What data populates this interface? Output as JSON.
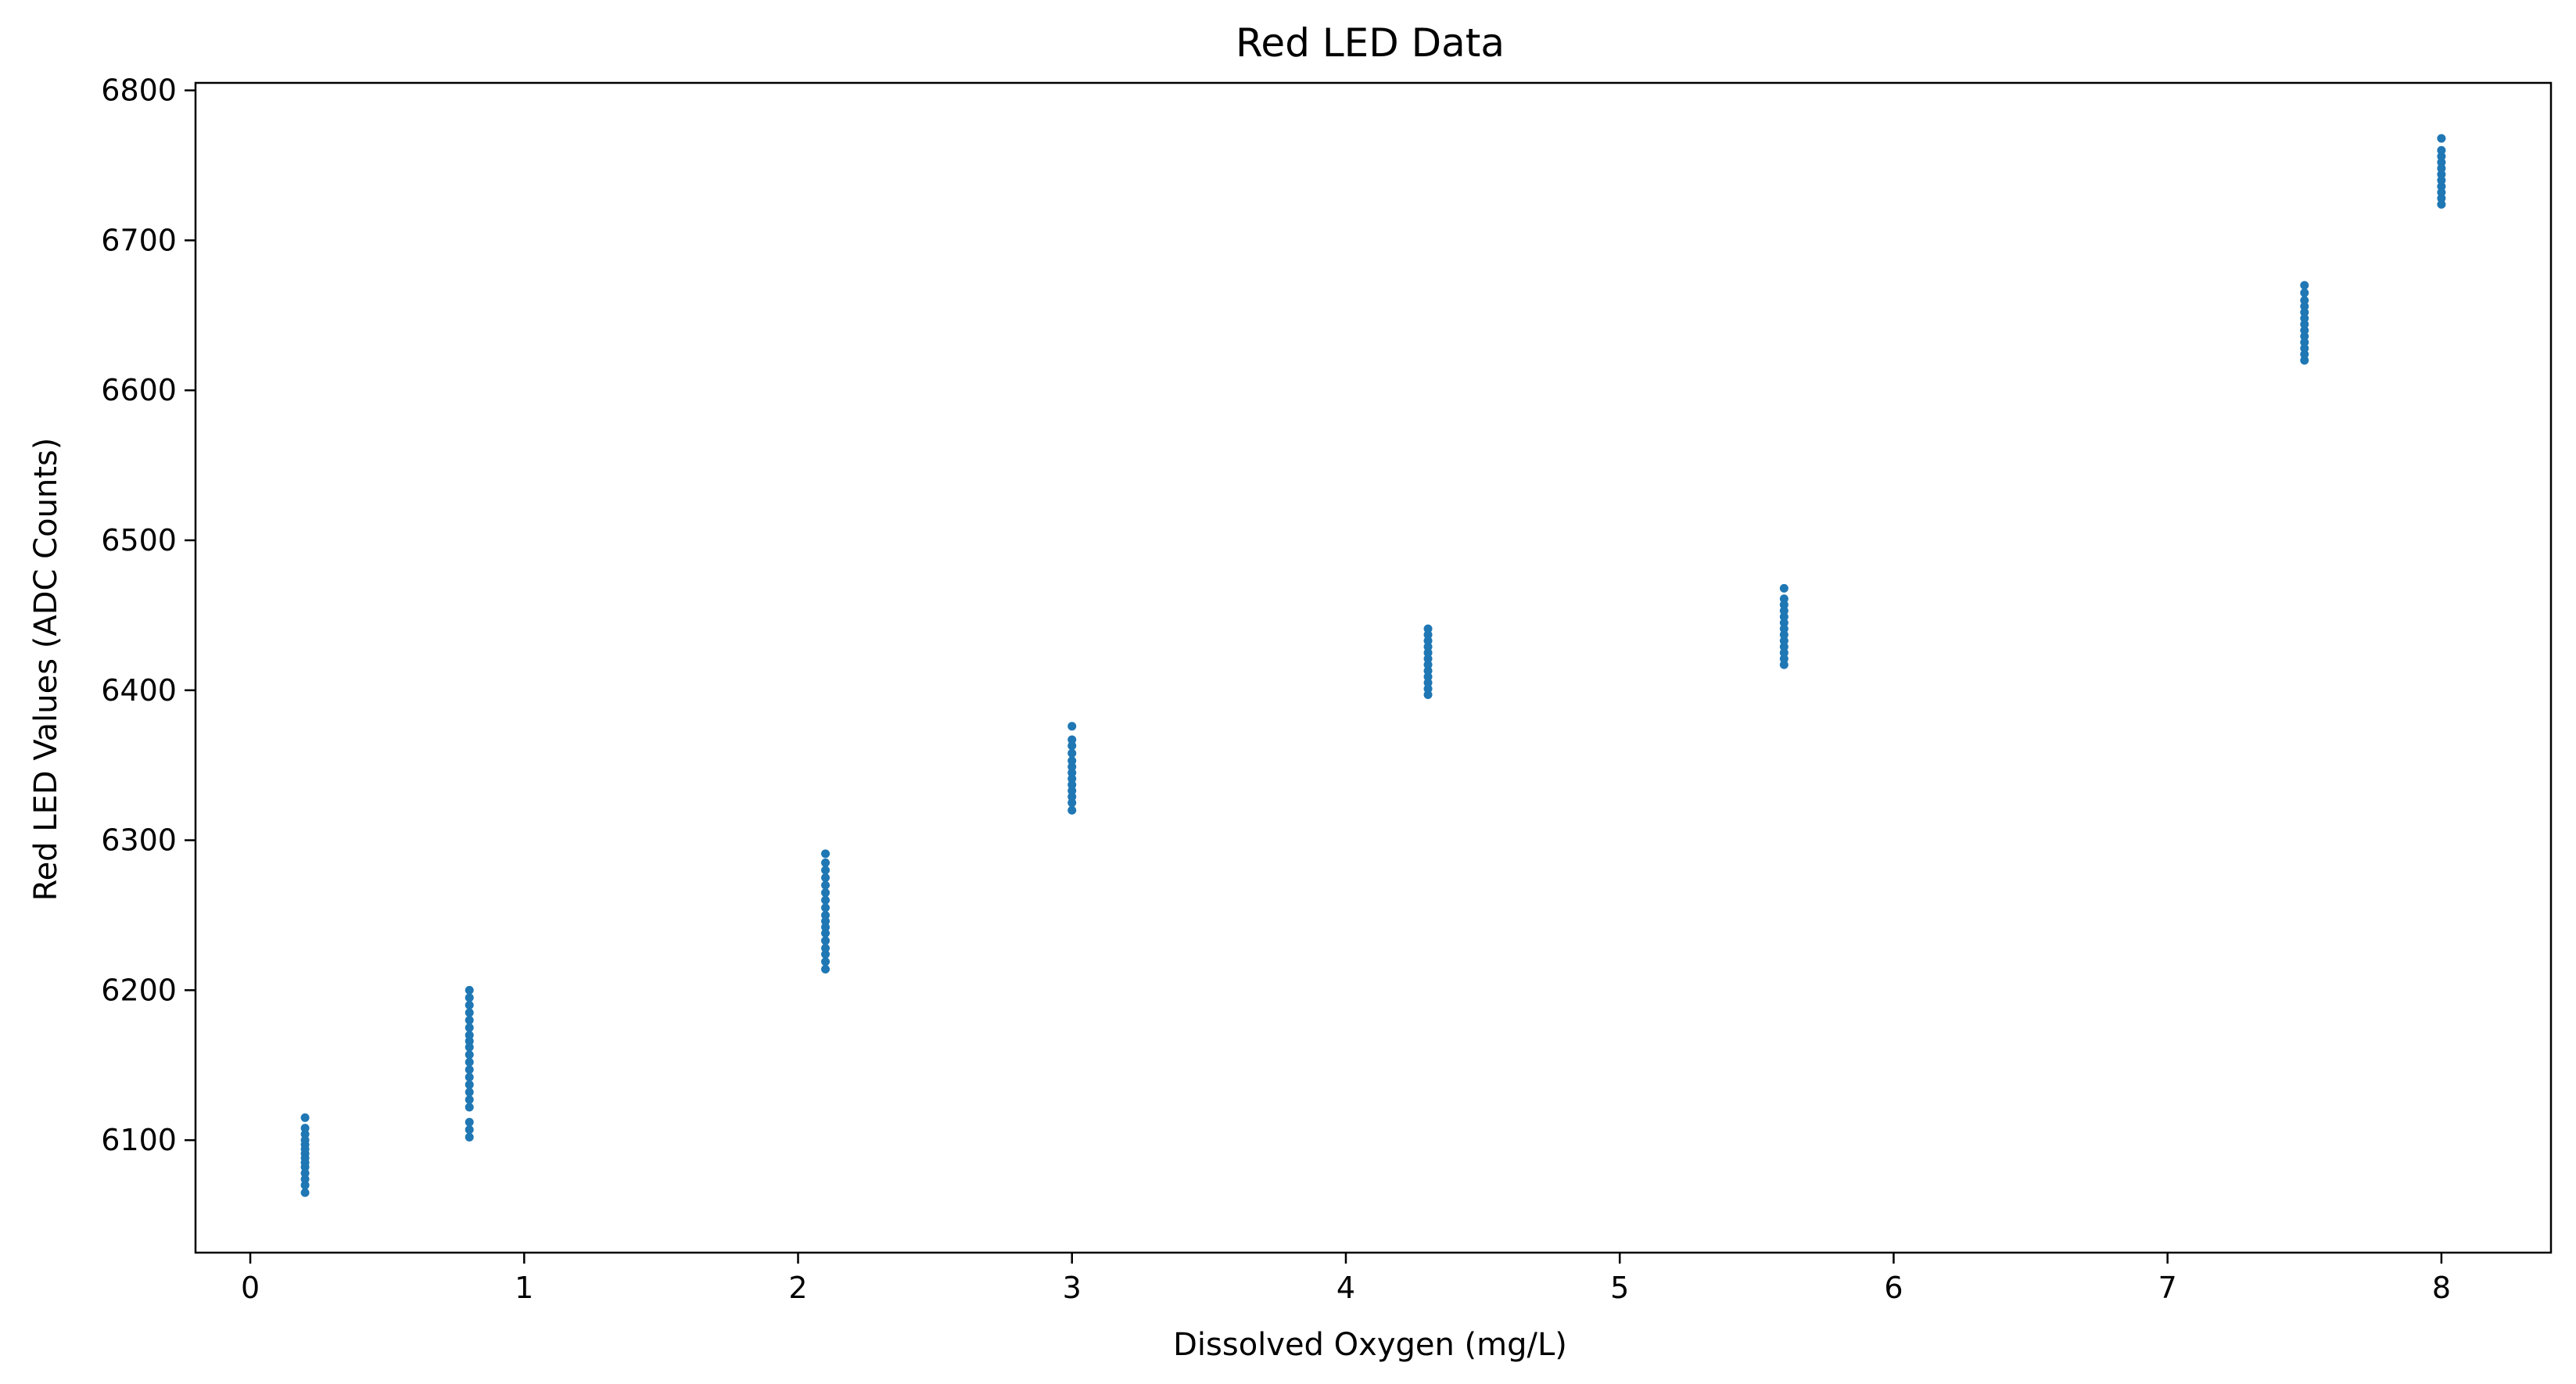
{
  "chart_data": {
    "type": "scatter",
    "title": "Red LED Data",
    "xlabel": "Dissolved Oxygen (mg/L)",
    "ylabel": "Red LED Values (ADC Counts)",
    "xlim": [
      -0.2,
      8.4
    ],
    "ylim": [
      6025,
      6805
    ],
    "xticks": [
      0,
      1,
      2,
      3,
      4,
      5,
      6,
      7,
      8
    ],
    "yticks": [
      6100,
      6200,
      6300,
      6400,
      6500,
      6600,
      6700,
      6800
    ],
    "grid": false,
    "marker_color": "#1f77b4",
    "series": [
      {
        "points": [
          {
            "x": 0.2,
            "y": 6065
          },
          {
            "x": 0.2,
            "y": 6070
          },
          {
            "x": 0.2,
            "y": 6074
          },
          {
            "x": 0.2,
            "y": 6078
          },
          {
            "x": 0.2,
            "y": 6082
          },
          {
            "x": 0.2,
            "y": 6085
          },
          {
            "x": 0.2,
            "y": 6088
          },
          {
            "x": 0.2,
            "y": 6091
          },
          {
            "x": 0.2,
            "y": 6094
          },
          {
            "x": 0.2,
            "y": 6097
          },
          {
            "x": 0.2,
            "y": 6100
          },
          {
            "x": 0.2,
            "y": 6104
          },
          {
            "x": 0.2,
            "y": 6108
          },
          {
            "x": 0.2,
            "y": 6115
          },
          {
            "x": 0.8,
            "y": 6102
          },
          {
            "x": 0.8,
            "y": 6107
          },
          {
            "x": 0.8,
            "y": 6112
          },
          {
            "x": 0.8,
            "y": 6122
          },
          {
            "x": 0.8,
            "y": 6127
          },
          {
            "x": 0.8,
            "y": 6132
          },
          {
            "x": 0.8,
            "y": 6137
          },
          {
            "x": 0.8,
            "y": 6142
          },
          {
            "x": 0.8,
            "y": 6147
          },
          {
            "x": 0.8,
            "y": 6152
          },
          {
            "x": 0.8,
            "y": 6157
          },
          {
            "x": 0.8,
            "y": 6162
          },
          {
            "x": 0.8,
            "y": 6166
          },
          {
            "x": 0.8,
            "y": 6170
          },
          {
            "x": 0.8,
            "y": 6175
          },
          {
            "x": 0.8,
            "y": 6180
          },
          {
            "x": 0.8,
            "y": 6185
          },
          {
            "x": 0.8,
            "y": 6190
          },
          {
            "x": 0.8,
            "y": 6195
          },
          {
            "x": 0.8,
            "y": 6200
          },
          {
            "x": 2.1,
            "y": 6214
          },
          {
            "x": 2.1,
            "y": 6219
          },
          {
            "x": 2.1,
            "y": 6224
          },
          {
            "x": 2.1,
            "y": 6228
          },
          {
            "x": 2.1,
            "y": 6233
          },
          {
            "x": 2.1,
            "y": 6238
          },
          {
            "x": 2.1,
            "y": 6242
          },
          {
            "x": 2.1,
            "y": 6246
          },
          {
            "x": 2.1,
            "y": 6250
          },
          {
            "x": 2.1,
            "y": 6255
          },
          {
            "x": 2.1,
            "y": 6260
          },
          {
            "x": 2.1,
            "y": 6265
          },
          {
            "x": 2.1,
            "y": 6270
          },
          {
            "x": 2.1,
            "y": 6275
          },
          {
            "x": 2.1,
            "y": 6280
          },
          {
            "x": 2.1,
            "y": 6285
          },
          {
            "x": 2.1,
            "y": 6291
          },
          {
            "x": 3.0,
            "y": 6320
          },
          {
            "x": 3.0,
            "y": 6325
          },
          {
            "x": 3.0,
            "y": 6329
          },
          {
            "x": 3.0,
            "y": 6333
          },
          {
            "x": 3.0,
            "y": 6337
          },
          {
            "x": 3.0,
            "y": 6341
          },
          {
            "x": 3.0,
            "y": 6345
          },
          {
            "x": 3.0,
            "y": 6349
          },
          {
            "x": 3.0,
            "y": 6353
          },
          {
            "x": 3.0,
            "y": 6358
          },
          {
            "x": 3.0,
            "y": 6363
          },
          {
            "x": 3.0,
            "y": 6367
          },
          {
            "x": 3.0,
            "y": 6376
          },
          {
            "x": 4.3,
            "y": 6397
          },
          {
            "x": 4.3,
            "y": 6401
          },
          {
            "x": 4.3,
            "y": 6405
          },
          {
            "x": 4.3,
            "y": 6409
          },
          {
            "x": 4.3,
            "y": 6413
          },
          {
            "x": 4.3,
            "y": 6417
          },
          {
            "x": 4.3,
            "y": 6421
          },
          {
            "x": 4.3,
            "y": 6425
          },
          {
            "x": 4.3,
            "y": 6429
          },
          {
            "x": 4.3,
            "y": 6433
          },
          {
            "x": 4.3,
            "y": 6437
          },
          {
            "x": 4.3,
            "y": 6441
          },
          {
            "x": 5.6,
            "y": 6417
          },
          {
            "x": 5.6,
            "y": 6421
          },
          {
            "x": 5.6,
            "y": 6425
          },
          {
            "x": 5.6,
            "y": 6429
          },
          {
            "x": 5.6,
            "y": 6433
          },
          {
            "x": 5.6,
            "y": 6437
          },
          {
            "x": 5.6,
            "y": 6441
          },
          {
            "x": 5.6,
            "y": 6445
          },
          {
            "x": 5.6,
            "y": 6449
          },
          {
            "x": 5.6,
            "y": 6453
          },
          {
            "x": 5.6,
            "y": 6457
          },
          {
            "x": 5.6,
            "y": 6461
          },
          {
            "x": 5.6,
            "y": 6468
          },
          {
            "x": 7.5,
            "y": 6620
          },
          {
            "x": 7.5,
            "y": 6624
          },
          {
            "x": 7.5,
            "y": 6628
          },
          {
            "x": 7.5,
            "y": 6632
          },
          {
            "x": 7.5,
            "y": 6636
          },
          {
            "x": 7.5,
            "y": 6640
          },
          {
            "x": 7.5,
            "y": 6644
          },
          {
            "x": 7.5,
            "y": 6648
          },
          {
            "x": 7.5,
            "y": 6652
          },
          {
            "x": 7.5,
            "y": 6656
          },
          {
            "x": 7.5,
            "y": 6660
          },
          {
            "x": 7.5,
            "y": 6665
          },
          {
            "x": 7.5,
            "y": 6670
          },
          {
            "x": 8.0,
            "y": 6724
          },
          {
            "x": 8.0,
            "y": 6728
          },
          {
            "x": 8.0,
            "y": 6732
          },
          {
            "x": 8.0,
            "y": 6736
          },
          {
            "x": 8.0,
            "y": 6740
          },
          {
            "x": 8.0,
            "y": 6744
          },
          {
            "x": 8.0,
            "y": 6748
          },
          {
            "x": 8.0,
            "y": 6752
          },
          {
            "x": 8.0,
            "y": 6756
          },
          {
            "x": 8.0,
            "y": 6760
          },
          {
            "x": 8.0,
            "y": 6768
          }
        ]
      }
    ]
  }
}
